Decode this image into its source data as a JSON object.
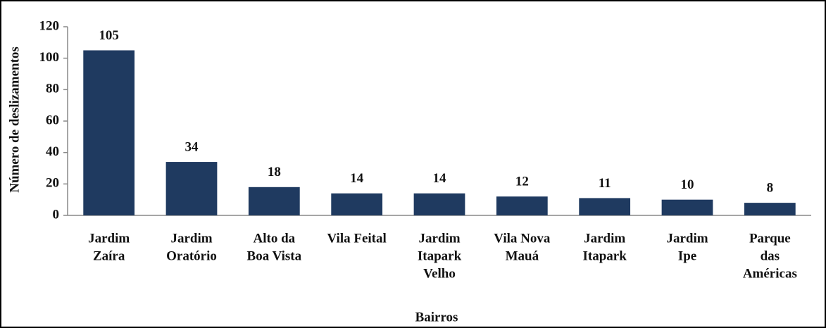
{
  "chart_data": {
    "type": "bar",
    "x_label": "Bairros",
    "y_label": "Número de deslizamentos",
    "categories": [
      [
        "Jardim",
        "Zaíra"
      ],
      [
        "Jardim",
        "Oratório"
      ],
      [
        "Alto da",
        "Boa Vista"
      ],
      [
        "Vila Feital"
      ],
      [
        "Jardim",
        "Itapark",
        "Velho"
      ],
      [
        "Vila Nova",
        "Mauá"
      ],
      [
        "Jardim",
        "Itapark"
      ],
      [
        "Jardim",
        "Ipe"
      ],
      [
        "Parque",
        "das",
        "Américas"
      ]
    ],
    "values": [
      105,
      34,
      18,
      14,
      14,
      12,
      11,
      10,
      8
    ],
    "color": "#1f3a60",
    "ylim": [
      0,
      120
    ],
    "yticks": [
      0,
      20,
      40,
      60,
      80,
      100,
      120
    ],
    "grid": false
  }
}
